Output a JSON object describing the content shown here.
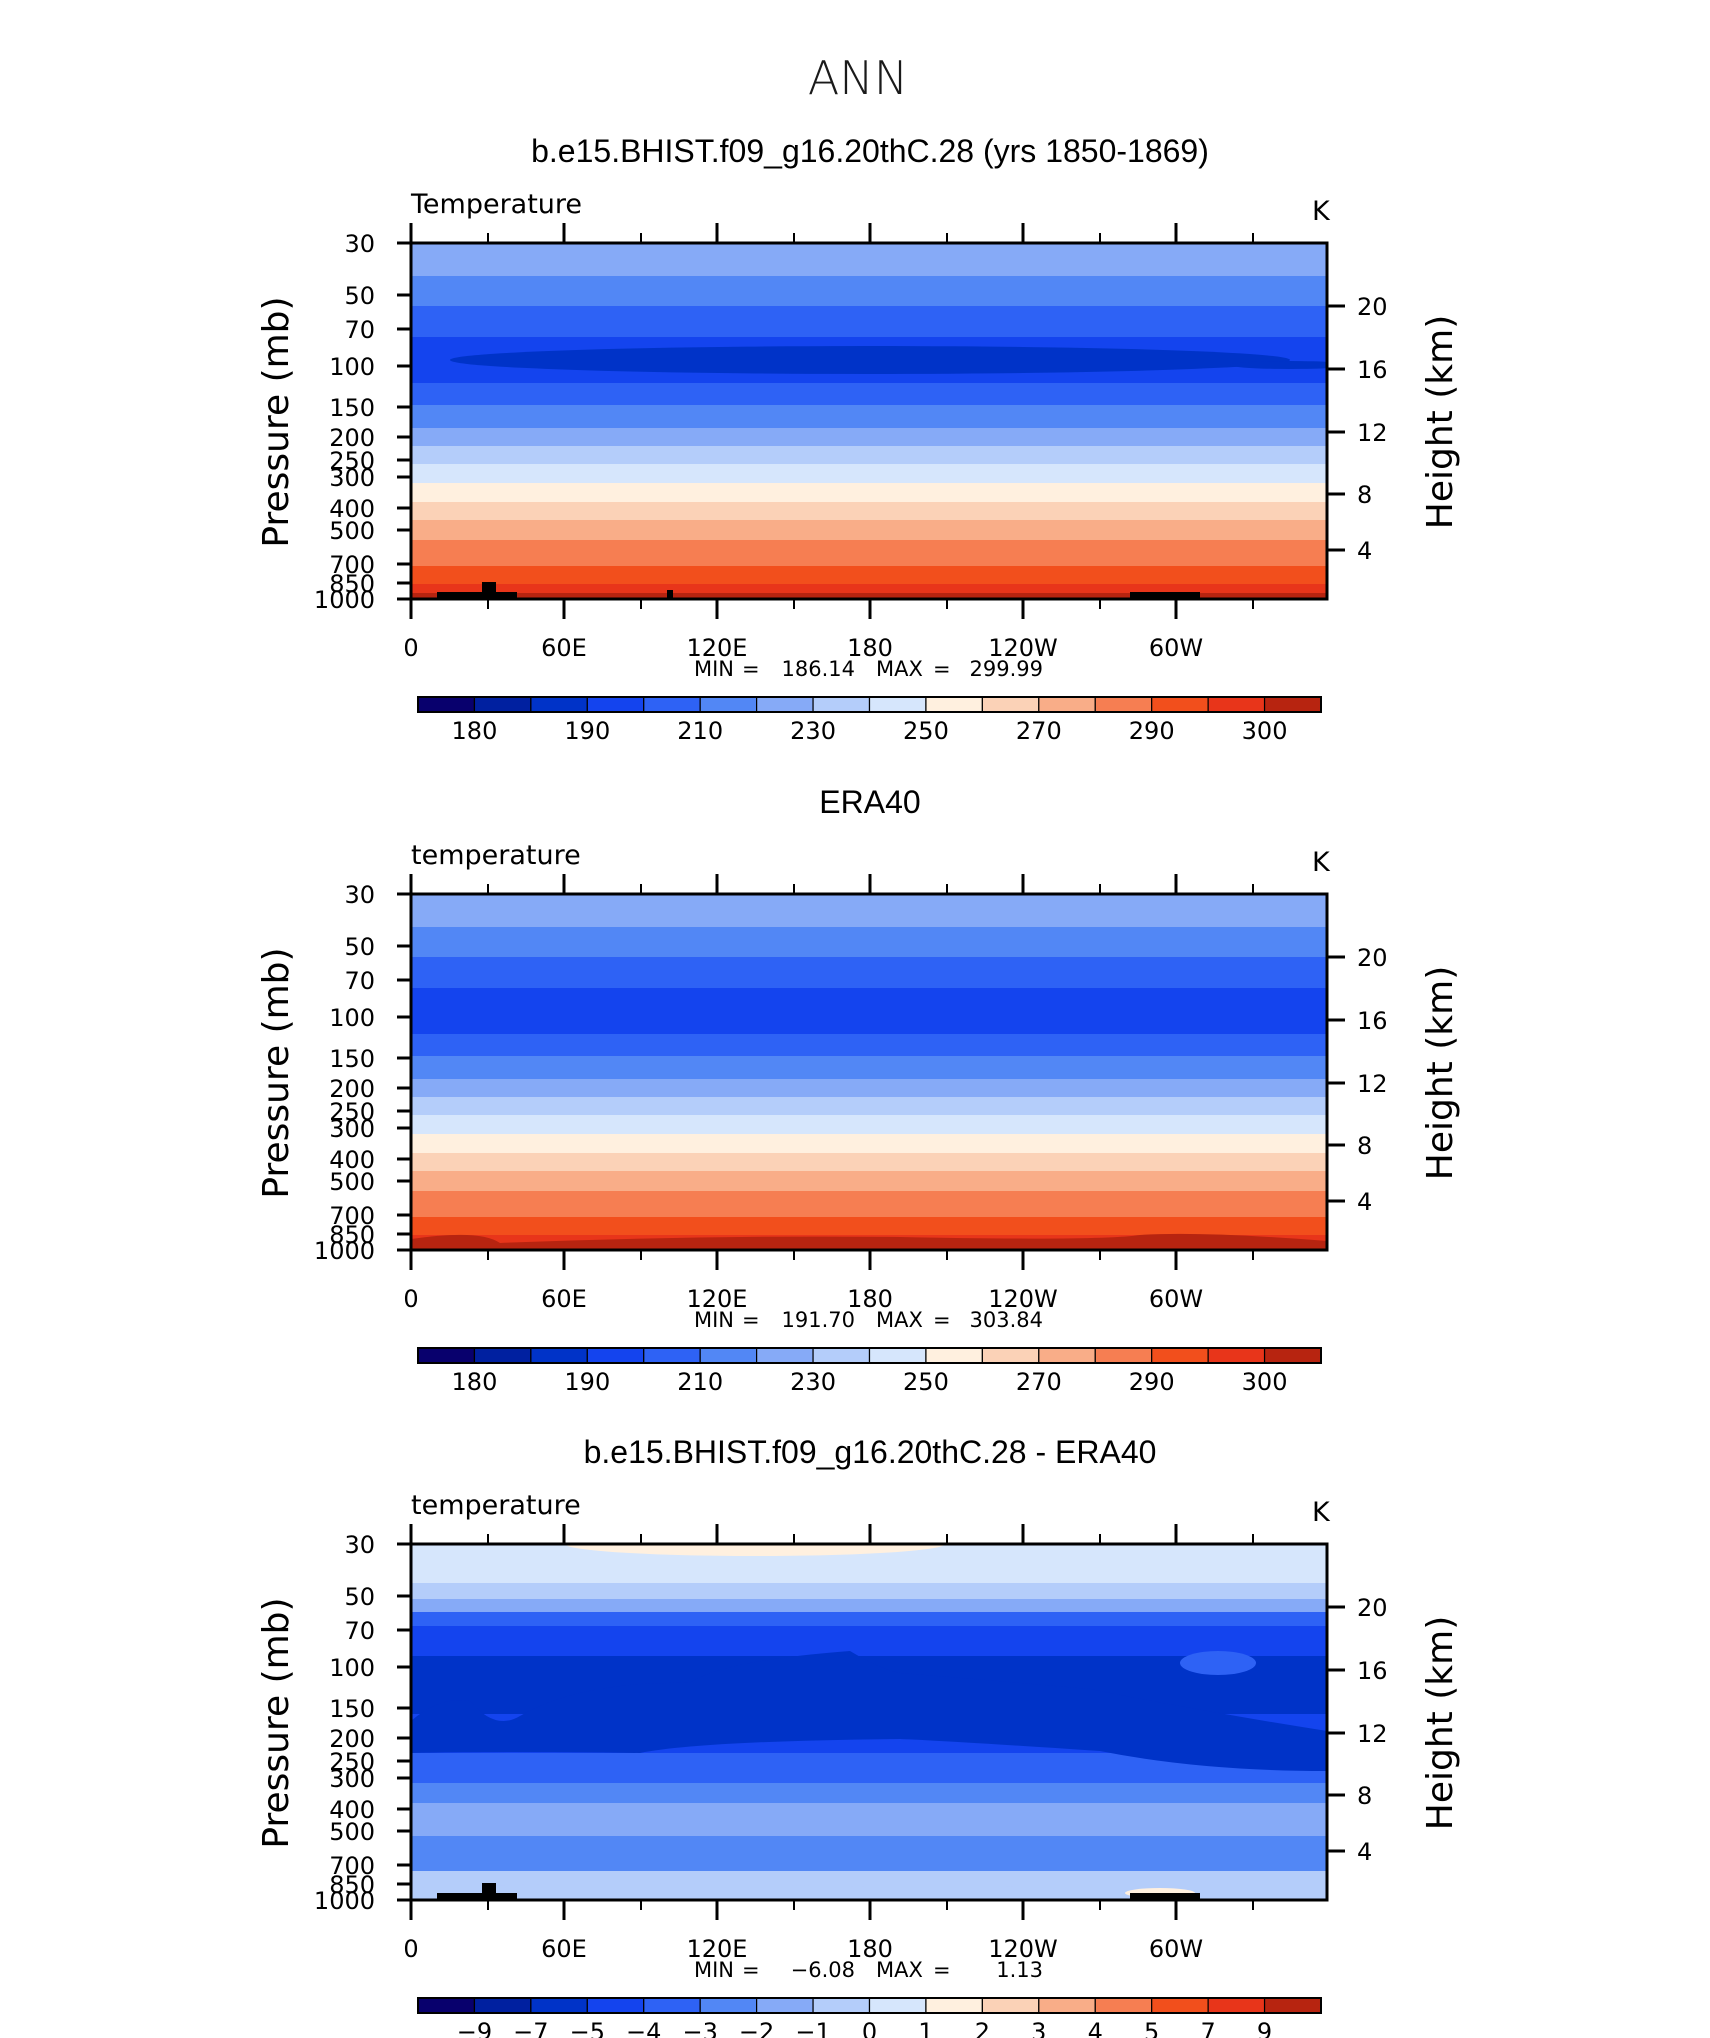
{
  "figure": {
    "title": "ANN"
  },
  "shared_axes": {
    "pressure_label": "Pressure (mb)",
    "height_label": "Height (km)",
    "pressure_ticks": [
      "30",
      "50",
      "70",
      "100",
      "150",
      "200",
      "250",
      "300",
      "400",
      "500",
      "700",
      "850",
      "1000"
    ],
    "height_ticks": [
      "20",
      "16",
      "12",
      "8",
      "4"
    ],
    "lon_ticks": [
      "0",
      "60E",
      "120E",
      "180",
      "120W",
      "60W"
    ]
  },
  "chart_data": [
    {
      "type": "heatmap",
      "title": "b.e15.BHIST.f09_g16.20thC.28 (yrs 1850-1869)",
      "variable": "Temperature",
      "units": "K",
      "min_label": "MIN",
      "min_value": "186.14",
      "max_label": "MAX",
      "max_value": "299.99",
      "levels": [
        175,
        180,
        185,
        190,
        200,
        210,
        220,
        230,
        240,
        250,
        260,
        270,
        280,
        290,
        295,
        300,
        305
      ],
      "colorbar_labels": [
        "180",
        "190",
        "210",
        "230",
        "250",
        "270",
        "290",
        "300"
      ],
      "has_topography": true
    },
    {
      "type": "heatmap",
      "title": "ERA40",
      "variable": "temperature",
      "units": "K",
      "min_label": "MIN",
      "min_value": "191.70",
      "max_label": "MAX",
      "max_value": "303.84",
      "levels": [
        175,
        180,
        185,
        190,
        200,
        210,
        220,
        230,
        240,
        250,
        260,
        270,
        280,
        290,
        295,
        300,
        305
      ],
      "colorbar_labels": [
        "180",
        "190",
        "210",
        "230",
        "250",
        "270",
        "290",
        "300"
      ],
      "has_topography": false
    },
    {
      "type": "heatmap",
      "title": "b.e15.BHIST.f09_g16.20thC.28 - ERA40",
      "variable": "temperature",
      "units": "K",
      "min_label": "MIN",
      "min_value": "−6.08",
      "max_label": "MAX",
      "max_value": "1.13",
      "levels": [
        -11,
        -9,
        -7,
        -5,
        -4,
        -3,
        -2,
        -1,
        0,
        1,
        2,
        3,
        4,
        5,
        7,
        9,
        11
      ],
      "colorbar_labels": [
        "−9",
        "−7",
        "−5",
        "−4",
        "−3",
        "−2",
        "−1",
        "0",
        "1",
        "2",
        "3",
        "4",
        "5",
        "7",
        "9"
      ],
      "has_topography": true
    }
  ],
  "colors": {
    "scale": [
      "#08006d",
      "#0020a0",
      "#0033c8",
      "#1444ee",
      "#2e62f5",
      "#5287f5",
      "#86aaf7",
      "#b4cdfa",
      "#d6e6fc",
      "#fff0df",
      "#fbd2b7",
      "#f9ad88",
      "#f67e52",
      "#f24f1c",
      "#e8351a",
      "#b72410",
      "#860707"
    ]
  }
}
